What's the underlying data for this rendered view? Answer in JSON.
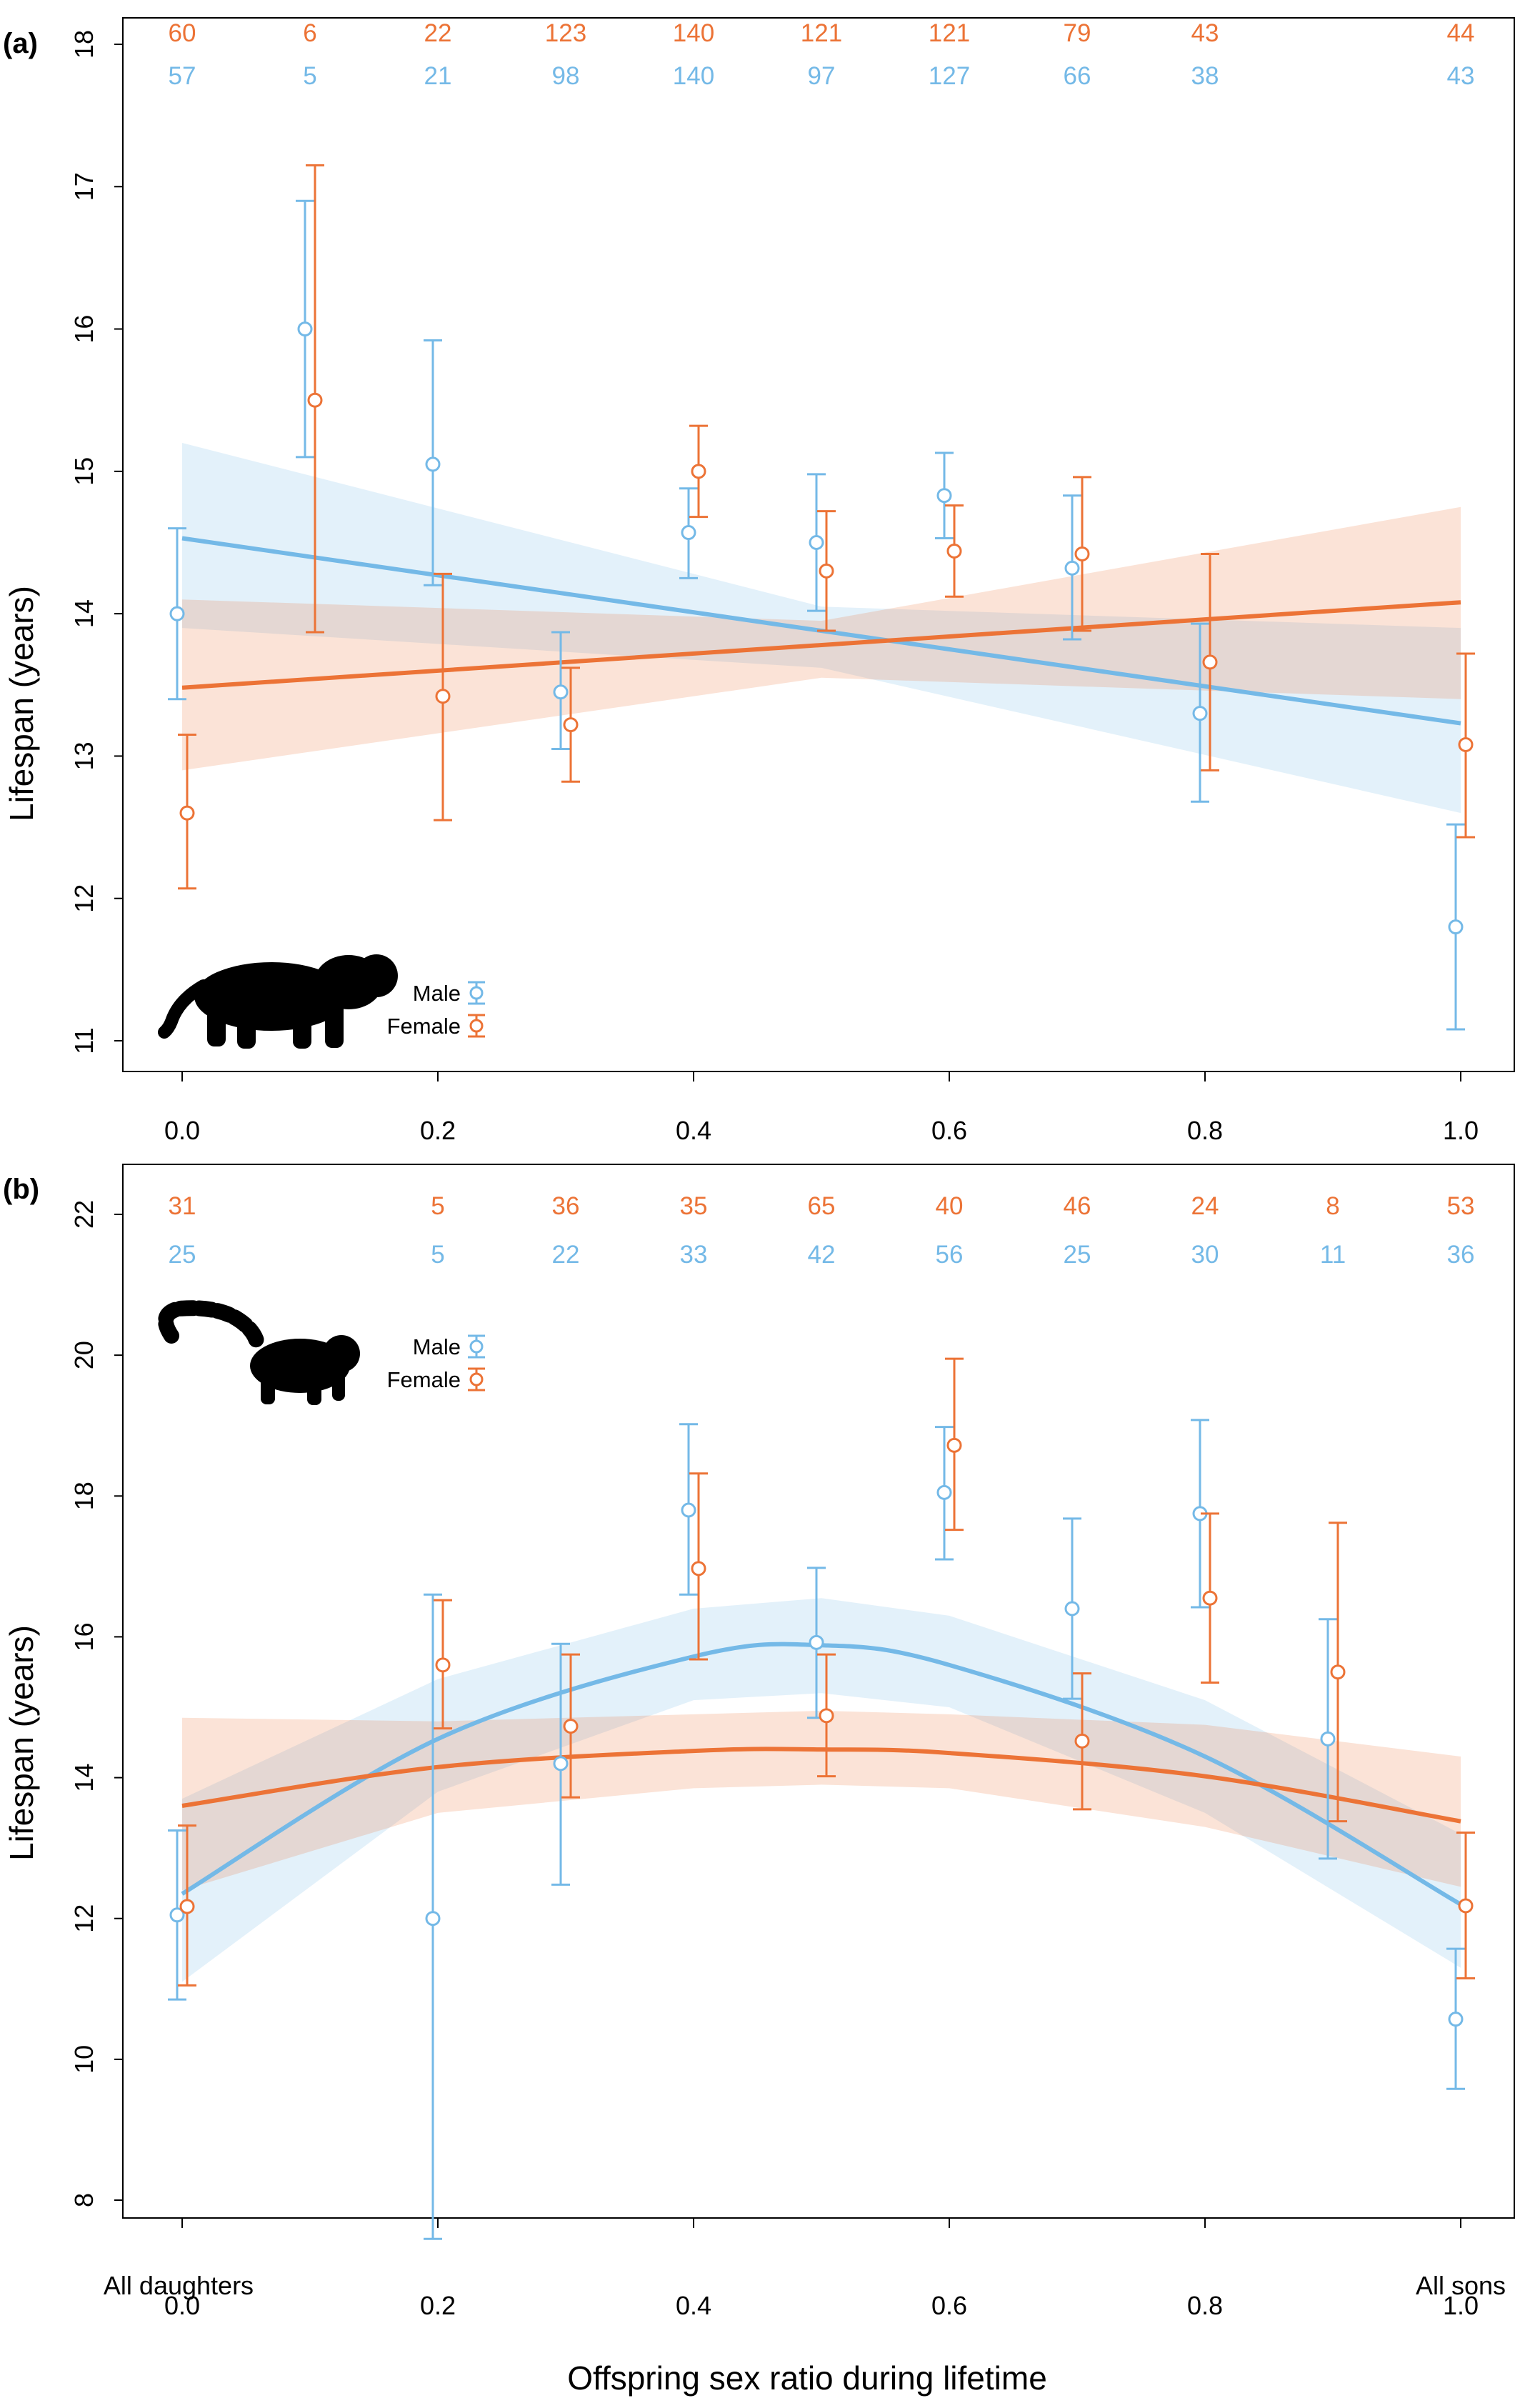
{
  "colors": {
    "male": "#74b9e7",
    "female": "#ec7336"
  },
  "icons": {
    "panel_a": "tiger-silhouette-icon",
    "panel_b": "lemur-silhouette-icon"
  },
  "xlabel": "Offspring sex ratio during lifetime",
  "x_end_labels": {
    "left": "All daughters",
    "right": "All sons"
  },
  "chart_data": [
    {
      "type": "scatter",
      "panel_label": "(a)",
      "ylabel": "Lifespan (years)",
      "xlim": [
        0,
        1
      ],
      "ylim": [
        11,
        18
      ],
      "x_ticks": [
        "0.0",
        "0.2",
        "0.4",
        "0.6",
        "0.8",
        "1.0"
      ],
      "y_ticks": [
        "11",
        "12",
        "13",
        "14",
        "15",
        "16",
        "17",
        "18"
      ],
      "legend": {
        "position": "bottom-left",
        "entries": [
          "Male",
          "Female"
        ]
      },
      "count_x": [
        0,
        0.1,
        0.2,
        0.3,
        0.4,
        0.5,
        0.6,
        0.7,
        0.8,
        1.0
      ],
      "female_counts": [
        "60",
        "6",
        "22",
        "123",
        "140",
        "121",
        "121",
        "79",
        "43",
        "44"
      ],
      "male_counts": [
        "57",
        "5",
        "21",
        "98",
        "140",
        "97",
        "127",
        "66",
        "38",
        "43"
      ],
      "series": [
        {
          "name": "Male",
          "points": [
            {
              "x": 0.0,
              "y": 14.0,
              "lo": 13.4,
              "hi": 14.6
            },
            {
              "x": 0.1,
              "y": 16.0,
              "lo": 15.1,
              "hi": 16.9
            },
            {
              "x": 0.2,
              "y": 15.05,
              "lo": 14.2,
              "hi": 15.92
            },
            {
              "x": 0.3,
              "y": 13.45,
              "lo": 13.05,
              "hi": 13.87
            },
            {
              "x": 0.4,
              "y": 14.57,
              "lo": 14.25,
              "hi": 14.88
            },
            {
              "x": 0.5,
              "y": 14.5,
              "lo": 14.02,
              "hi": 14.98
            },
            {
              "x": 0.6,
              "y": 14.83,
              "lo": 14.53,
              "hi": 15.13
            },
            {
              "x": 0.7,
              "y": 14.32,
              "lo": 13.82,
              "hi": 14.83
            },
            {
              "x": 0.8,
              "y": 13.3,
              "lo": 12.68,
              "hi": 13.93
            },
            {
              "x": 1.0,
              "y": 11.8,
              "lo": 11.08,
              "hi": 12.52
            }
          ],
          "fit": {
            "x": [
              0.0,
              1.0
            ],
            "y": [
              14.53,
              13.23
            ]
          },
          "band": {
            "x": [
              0.0,
              0.5,
              1.0
            ],
            "lo": [
              13.9,
              13.62,
              12.6
            ],
            "hi": [
              15.2,
              14.05,
              13.9
            ]
          }
        },
        {
          "name": "Female",
          "points": [
            {
              "x": 0.0,
              "y": 12.6,
              "lo": 12.07,
              "hi": 13.15
            },
            {
              "x": 0.1,
              "y": 15.5,
              "lo": 13.87,
              "hi": 17.15
            },
            {
              "x": 0.2,
              "y": 13.42,
              "lo": 12.55,
              "hi": 14.28
            },
            {
              "x": 0.3,
              "y": 13.22,
              "lo": 12.82,
              "hi": 13.62
            },
            {
              "x": 0.4,
              "y": 15.0,
              "lo": 14.68,
              "hi": 15.32
            },
            {
              "x": 0.5,
              "y": 14.3,
              "lo": 13.88,
              "hi": 14.72
            },
            {
              "x": 0.6,
              "y": 14.44,
              "lo": 14.12,
              "hi": 14.76
            },
            {
              "x": 0.7,
              "y": 14.42,
              "lo": 13.88,
              "hi": 14.96
            },
            {
              "x": 0.8,
              "y": 13.66,
              "lo": 12.9,
              "hi": 14.42
            },
            {
              "x": 1.0,
              "y": 13.08,
              "lo": 12.43,
              "hi": 13.72
            }
          ],
          "fit": {
            "x": [
              0.0,
              1.0
            ],
            "y": [
              13.48,
              14.08
            ]
          },
          "band": {
            "x": [
              0.0,
              0.5,
              1.0
            ],
            "lo": [
              12.9,
              13.55,
              13.4
            ],
            "hi": [
              14.1,
              13.95,
              14.75
            ]
          }
        }
      ]
    },
    {
      "type": "scatter",
      "panel_label": "(b)",
      "ylabel": "Lifespan (years)",
      "xlim": [
        0,
        1
      ],
      "ylim": [
        8,
        22
      ],
      "x_ticks": [
        "0.0",
        "0.2",
        "0.4",
        "0.6",
        "0.8",
        "1.0"
      ],
      "y_ticks": [
        "8",
        "10",
        "12",
        "14",
        "16",
        "18",
        "20",
        "22"
      ],
      "legend": {
        "position": "top-left",
        "entries": [
          "Male",
          "Female"
        ]
      },
      "count_x": [
        0,
        0.2,
        0.3,
        0.4,
        0.5,
        0.6,
        0.7,
        0.8,
        0.9,
        1.0
      ],
      "female_counts": [
        "31",
        "5",
        "36",
        "35",
        "65",
        "40",
        "46",
        "24",
        "8",
        "53"
      ],
      "male_counts": [
        "25",
        "5",
        "22",
        "33",
        "42",
        "56",
        "25",
        "30",
        "11",
        "36"
      ],
      "series": [
        {
          "name": "Male",
          "points": [
            {
              "x": 0.0,
              "y": 12.05,
              "lo": 10.85,
              "hi": 13.25
            },
            {
              "x": 0.2,
              "y": 12.0,
              "lo": 7.45,
              "hi": 16.6
            },
            {
              "x": 0.3,
              "y": 14.2,
              "lo": 12.48,
              "hi": 15.9
            },
            {
              "x": 0.4,
              "y": 17.8,
              "lo": 16.6,
              "hi": 19.02
            },
            {
              "x": 0.5,
              "y": 15.92,
              "lo": 14.85,
              "hi": 16.98
            },
            {
              "x": 0.6,
              "y": 18.05,
              "lo": 17.1,
              "hi": 18.98
            },
            {
              "x": 0.7,
              "y": 16.4,
              "lo": 15.12,
              "hi": 17.68
            },
            {
              "x": 0.8,
              "y": 17.75,
              "lo": 16.42,
              "hi": 19.08
            },
            {
              "x": 0.9,
              "y": 14.55,
              "lo": 12.85,
              "hi": 16.25
            },
            {
              "x": 1.0,
              "y": 10.57,
              "lo": 9.58,
              "hi": 11.57
            }
          ],
          "fit": {
            "x": [
              0.0,
              0.2,
              0.4,
              0.5,
              0.6,
              0.8,
              1.0
            ],
            "y": [
              12.35,
              14.55,
              15.72,
              15.88,
              15.6,
              14.3,
              12.2
            ]
          },
          "band": {
            "x": [
              0.0,
              0.2,
              0.4,
              0.5,
              0.6,
              0.8,
              1.0
            ],
            "lo": [
              11.1,
              13.8,
              15.1,
              15.2,
              15.0,
              13.5,
              11.3
            ],
            "hi": [
              13.7,
              15.4,
              16.4,
              16.55,
              16.3,
              15.1,
              13.2
            ]
          }
        },
        {
          "name": "Female",
          "points": [
            {
              "x": 0.0,
              "y": 12.17,
              "lo": 11.05,
              "hi": 13.32
            },
            {
              "x": 0.2,
              "y": 15.6,
              "lo": 14.7,
              "hi": 16.52
            },
            {
              "x": 0.3,
              "y": 14.73,
              "lo": 13.72,
              "hi": 15.75
            },
            {
              "x": 0.4,
              "y": 16.97,
              "lo": 15.68,
              "hi": 18.32
            },
            {
              "x": 0.5,
              "y": 14.88,
              "lo": 14.02,
              "hi": 15.75
            },
            {
              "x": 0.6,
              "y": 18.72,
              "lo": 17.52,
              "hi": 19.95
            },
            {
              "x": 0.7,
              "y": 14.52,
              "lo": 13.55,
              "hi": 15.48
            },
            {
              "x": 0.8,
              "y": 16.55,
              "lo": 15.35,
              "hi": 17.75
            },
            {
              "x": 0.9,
              "y": 15.5,
              "lo": 13.38,
              "hi": 17.62
            },
            {
              "x": 1.0,
              "y": 12.18,
              "lo": 11.15,
              "hi": 13.22
            }
          ],
          "fit": {
            "x": [
              0.0,
              0.2,
              0.4,
              0.5,
              0.6,
              0.8,
              1.0
            ],
            "y": [
              13.6,
              14.15,
              14.38,
              14.4,
              14.35,
              14.02,
              13.38
            ]
          },
          "band": {
            "x": [
              0.0,
              0.2,
              0.4,
              0.5,
              0.6,
              0.8,
              1.0
            ],
            "lo": [
              12.4,
              13.5,
              13.85,
              13.9,
              13.85,
              13.3,
              12.45
            ],
            "hi": [
              14.85,
              14.8,
              14.9,
              14.95,
              14.9,
              14.75,
              14.3
            ]
          }
        }
      ]
    }
  ]
}
